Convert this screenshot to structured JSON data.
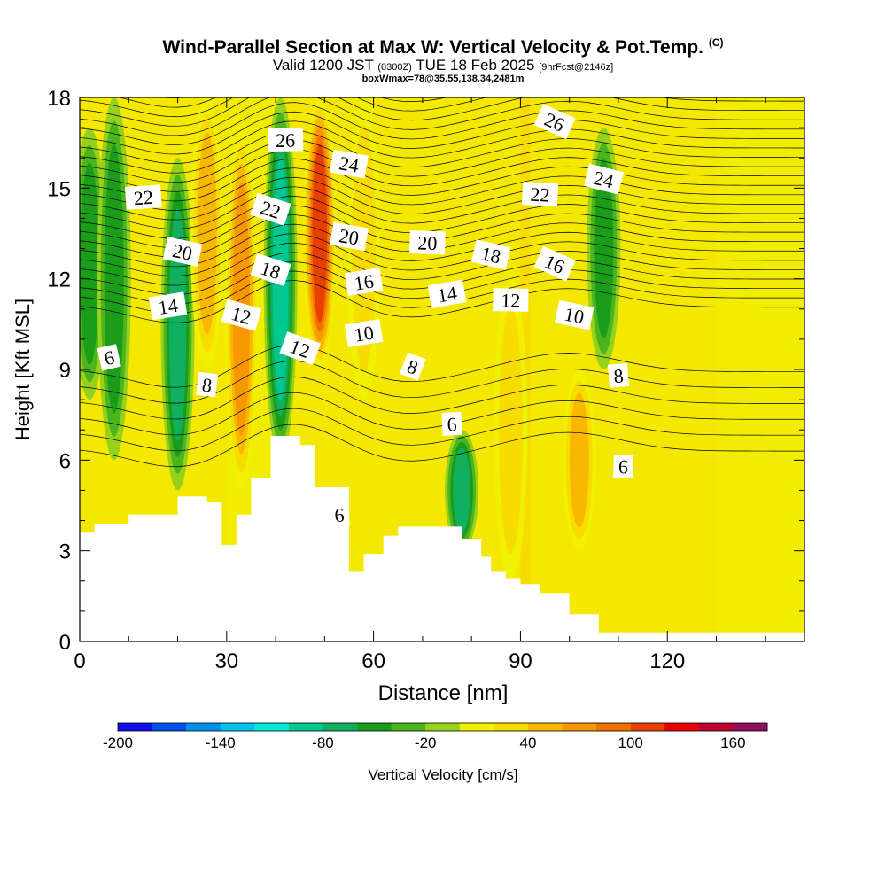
{
  "header": {
    "title": "Wind-Parallel Section at Max W: Vertical Velocity & Pot.Temp.",
    "copyright": "(C)",
    "valid_prefix": "Valid 1200 JST",
    "valid_utc": "(0300Z)",
    "valid_date": "TUE 18 Feb 2025",
    "forecast": "[9hrFcst@2146z]",
    "boxwmax": "boxWmax=78@35.55,138.34,2481m"
  },
  "chart_data": {
    "type": "heatmap",
    "xlabel": "Distance [nm]",
    "ylabel": "Height [Kft MSL]",
    "xlim": [
      0,
      148
    ],
    "ylim": [
      0,
      18
    ],
    "x_ticks": [
      0,
      30,
      60,
      90,
      120
    ],
    "y_ticks": [
      0,
      3,
      6,
      9,
      12,
      15,
      18
    ],
    "colorbar": {
      "label": "Vertical Velocity [cm/s]",
      "ticks": [
        "-200",
        "-140",
        "-80",
        "-20",
        "40",
        "100",
        "160"
      ],
      "bounds": [
        -200,
        180
      ],
      "step": 20,
      "colors": [
        "#1010ee",
        "#0050ee",
        "#0090ee",
        "#00c0f0",
        "#00e8d8",
        "#00c890",
        "#10b060",
        "#1a9e1a",
        "#4cb41c",
        "#96d21c",
        "#f0f000",
        "#f8dc00",
        "#f8b800",
        "#f89800",
        "#f07000",
        "#e84000",
        "#e80000",
        "#c00030",
        "#901060"
      ]
    },
    "velocity_field": {
      "shape": "dominant value 0 to 20 cm/s; narrow updraft and downdraft plumes",
      "max_updraft": 110,
      "max_downdraft": -90,
      "plumes": [
        {
          "x": 2,
          "height_range": [
            8,
            17
          ],
          "value": -60
        },
        {
          "x": 7,
          "height_range": [
            6,
            18
          ],
          "value": -50
        },
        {
          "x": 20,
          "height_range": [
            5,
            16
          ],
          "value": -70
        },
        {
          "x": 26,
          "height_range": [
            9,
            18
          ],
          "value": 60
        },
        {
          "x": 33,
          "height_range": [
            5,
            17
          ],
          "value": 80
        },
        {
          "x": 41,
          "height_range": [
            6,
            18
          ],
          "value": -90
        },
        {
          "x": 49,
          "height_range": [
            9,
            18
          ],
          "value": 110
        },
        {
          "x": 58,
          "height_range": [
            8,
            18
          ],
          "value": 40
        },
        {
          "x": 78,
          "height_range": [
            3,
            7
          ],
          "value": -70
        },
        {
          "x": 88,
          "height_range": [
            2,
            12
          ],
          "value": 30
        },
        {
          "x": 102,
          "height_range": [
            3,
            9
          ],
          "value": 50
        },
        {
          "x": 107,
          "height_range": [
            9,
            17
          ],
          "value": -60
        }
      ]
    },
    "terrain_kft": [
      [
        0,
        3.6
      ],
      [
        3,
        3.9
      ],
      [
        10,
        4.2
      ],
      [
        20,
        4.8
      ],
      [
        26,
        4.6
      ],
      [
        29,
        3.2
      ],
      [
        32,
        4.2
      ],
      [
        35,
        5.4
      ],
      [
        39,
        6.8
      ],
      [
        45,
        6.5
      ],
      [
        48,
        5.1
      ],
      [
        55,
        2.3
      ],
      [
        58,
        2.9
      ],
      [
        62,
        3.5
      ],
      [
        65,
        3.8
      ],
      [
        78,
        3.4
      ],
      [
        82,
        2.8
      ],
      [
        84,
        2.3
      ],
      [
        87,
        2.1
      ],
      [
        90,
        1.9
      ],
      [
        94,
        1.6
      ],
      [
        100,
        0.9
      ],
      [
        106,
        0.3
      ],
      [
        148,
        0.3
      ]
    ],
    "theta_contour_labels": [
      {
        "text": "6",
        "x": 6,
        "y": 9.4
      },
      {
        "text": "8",
        "x": 26,
        "y": 8.5
      },
      {
        "text": "6",
        "x": 53,
        "y": 4.2
      },
      {
        "text": "8",
        "x": 68,
        "y": 9.1
      },
      {
        "text": "6",
        "x": 76,
        "y": 7.2
      },
      {
        "text": "8",
        "x": 110,
        "y": 8.8
      },
      {
        "text": "6",
        "x": 111,
        "y": 5.8
      },
      {
        "text": "10",
        "x": 58,
        "y": 10.2
      },
      {
        "text": "10",
        "x": 101,
        "y": 10.8
      },
      {
        "text": "12",
        "x": 33,
        "y": 10.8
      },
      {
        "text": "12",
        "x": 45,
        "y": 9.7
      },
      {
        "text": "12",
        "x": 88,
        "y": 11.3
      },
      {
        "text": "14",
        "x": 18,
        "y": 11.1
      },
      {
        "text": "14",
        "x": 75,
        "y": 11.5
      },
      {
        "text": "16",
        "x": 58,
        "y": 11.9
      },
      {
        "text": "16",
        "x": 97,
        "y": 12.5
      },
      {
        "text": "18",
        "x": 39,
        "y": 12.3
      },
      {
        "text": "18",
        "x": 84,
        "y": 12.8
      },
      {
        "text": "20",
        "x": 21,
        "y": 12.9
      },
      {
        "text": "20",
        "x": 55,
        "y": 13.4
      },
      {
        "text": "20",
        "x": 71,
        "y": 13.2
      },
      {
        "text": "22",
        "x": 13,
        "y": 14.7
      },
      {
        "text": "22",
        "x": 39,
        "y": 14.3
      },
      {
        "text": "22",
        "x": 94,
        "y": 14.8
      },
      {
        "text": "24",
        "x": 55,
        "y": 15.8
      },
      {
        "text": "24",
        "x": 107,
        "y": 15.3
      },
      {
        "text": "26",
        "x": 42,
        "y": 16.6
      },
      {
        "text": "26",
        "x": 97,
        "y": 17.2
      }
    ]
  }
}
